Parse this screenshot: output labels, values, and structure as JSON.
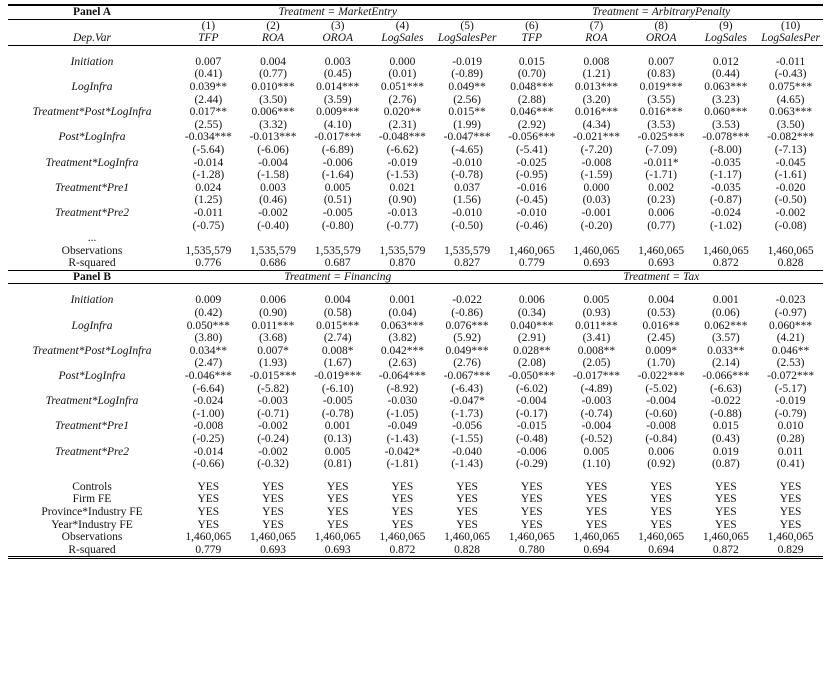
{
  "columns": [
    "(1)",
    "(2)",
    "(3)",
    "(4)",
    "(5)",
    "(6)",
    "(7)",
    "(8)",
    "(9)",
    "(10)"
  ],
  "dep_var_label": "Dep.Var",
  "dep_vars": [
    "TFP",
    "ROA",
    "OROA",
    "LogSales",
    "LogSalesPer",
    "TFP",
    "ROA",
    "OROA",
    "LogSales",
    "LogSalesPer"
  ],
  "panels": [
    {
      "label": "Panel A",
      "treatments": [
        "Treatment = MarketEntry",
        "Treatment = ArbitraryPenalty"
      ],
      "variables": [
        {
          "label": "Initiation",
          "coef": [
            "0.007",
            "0.004",
            "0.003",
            "0.000",
            "-0.019",
            "0.015",
            "0.008",
            "0.007",
            "0.012",
            "-0.011"
          ],
          "t": [
            "(0.41)",
            "(0.77)",
            "(0.45)",
            "(0.01)",
            "(-0.89)",
            "(0.70)",
            "(1.21)",
            "(0.83)",
            "(0.44)",
            "(-0.43)"
          ]
        },
        {
          "label": "LogInfra",
          "coef": [
            "0.039**",
            "0.010***",
            "0.014***",
            "0.051***",
            "0.049**",
            "0.048***",
            "0.013***",
            "0.019***",
            "0.063***",
            "0.075***"
          ],
          "t": [
            "(2.44)",
            "(3.50)",
            "(3.59)",
            "(2.76)",
            "(2.56)",
            "(2.88)",
            "(3.20)",
            "(3.55)",
            "(3.23)",
            "(4.65)"
          ]
        },
        {
          "label": "Treatment*Post*LogInfra",
          "coef": [
            "0.017**",
            "0.006***",
            "0.009***",
            "0.020**",
            "0.015**",
            "0.046***",
            "0.016***",
            "0.016***",
            "0.060***",
            "0.063***"
          ],
          "t": [
            "(2.55)",
            "(3.32)",
            "(4.10)",
            "(2.31)",
            "(1.99)",
            "(2.92)",
            "(4.34)",
            "(3.53)",
            "(3.53)",
            "(3.50)"
          ]
        },
        {
          "label": "Post*LogInfra",
          "coef": [
            "-0.034***",
            "-0.013***",
            "-0.017***",
            "-0.048***",
            "-0.047***",
            "-0.056***",
            "-0.021***",
            "-0.025***",
            "-0.078***",
            "-0.082***"
          ],
          "t": [
            "(-5.64)",
            "(-6.06)",
            "(-6.89)",
            "(-6.62)",
            "(-4.65)",
            "(-5.41)",
            "(-7.20)",
            "(-7.09)",
            "(-8.00)",
            "(-7.13)"
          ]
        },
        {
          "label": "Treatment*LogInfra",
          "coef": [
            "-0.014",
            "-0.004",
            "-0.006",
            "-0.019",
            "-0.010",
            "-0.025",
            "-0.008",
            "-0.011*",
            "-0.035",
            "-0.045"
          ],
          "t": [
            "(-1.28)",
            "(-1.58)",
            "(-1.64)",
            "(-1.53)",
            "(-0.78)",
            "(-0.95)",
            "(-1.59)",
            "(-1.71)",
            "(-1.17)",
            "(-1.61)"
          ]
        },
        {
          "label": "Treatment*Pre1",
          "coef": [
            "0.024",
            "0.003",
            "0.005",
            "0.021",
            "0.037",
            "-0.016",
            "0.000",
            "0.002",
            "-0.035",
            "-0.020"
          ],
          "t": [
            "(1.25)",
            "(0.46)",
            "(0.51)",
            "(0.90)",
            "(1.56)",
            "(-0.45)",
            "(0.03)",
            "(0.23)",
            "(-0.87)",
            "(-0.50)"
          ]
        },
        {
          "label": "Treatment*Pre2",
          "coef": [
            "-0.011",
            "-0.002",
            "-0.005",
            "-0.013",
            "-0.010",
            "-0.010",
            "-0.001",
            "0.006",
            "-0.024",
            "-0.002"
          ],
          "t": [
            "(-0.75)",
            "(-0.40)",
            "(-0.80)",
            "(-0.77)",
            "(-0.50)",
            "(-0.46)",
            "(-0.20)",
            "(0.77)",
            "(-1.02)",
            "(-0.08)"
          ]
        }
      ],
      "ellipsis": "...",
      "stats": [
        {
          "label": "Observations",
          "cells": [
            "1,535,579",
            "1,535,579",
            "1,535,579",
            "1,535,579",
            "1,535,579",
            "1,460,065",
            "1,460,065",
            "1,460,065",
            "1,460,065",
            "1,460,065"
          ]
        },
        {
          "label": "R-squared",
          "cells": [
            "0.776",
            "0.686",
            "0.687",
            "0.870",
            "0.827",
            "0.779",
            "0.693",
            "0.693",
            "0.872",
            "0.828"
          ]
        }
      ]
    },
    {
      "label": "Panel B",
      "treatments": [
        "Treatment = Financing",
        "Treatment = Tax"
      ],
      "variables": [
        {
          "label": "Initiation",
          "coef": [
            "0.009",
            "0.006",
            "0.004",
            "0.001",
            "-0.022",
            "0.006",
            "0.005",
            "0.004",
            "0.001",
            "-0.023"
          ],
          "t": [
            "(0.42)",
            "(0.90)",
            "(0.58)",
            "(0.04)",
            "(-0.86)",
            "(0.34)",
            "(0.93)",
            "(0.53)",
            "(0.06)",
            "(-0.97)"
          ]
        },
        {
          "label": "LogInfra",
          "coef": [
            "0.050***",
            "0.011***",
            "0.015***",
            "0.063***",
            "0.076***",
            "0.040***",
            "0.011***",
            "0.016**",
            "0.062***",
            "0.060***"
          ],
          "t": [
            "(3.80)",
            "(3.68)",
            "(2.74)",
            "(3.82)",
            "(5.92)",
            "(2.91)",
            "(3.41)",
            "(2.45)",
            "(3.57)",
            "(4.21)"
          ]
        },
        {
          "label": "Treatment*Post*LogInfra",
          "coef": [
            "0.034**",
            "0.007*",
            "0.008*",
            "0.042***",
            "0.049***",
            "0.028**",
            "0.008**",
            "0.009*",
            "0.033**",
            "0.046**"
          ],
          "t": [
            "(2.47)",
            "(1.93)",
            "(1.67)",
            "(2.63)",
            "(2.76)",
            "(2.08)",
            "(2.05)",
            "(1.70)",
            "(2.14)",
            "(2.53)"
          ]
        },
        {
          "label": "Post*LogInfra",
          "coef": [
            "-0.046***",
            "-0.015***",
            "-0.019***",
            "-0.064***",
            "-0.067***",
            "-0.050***",
            "-0.017***",
            "-0.022***",
            "-0.066***",
            "-0.072***"
          ],
          "t": [
            "(-6.64)",
            "(-5.82)",
            "(-6.10)",
            "(-8.92)",
            "(-6.43)",
            "(-6.02)",
            "(-4.89)",
            "(-5.02)",
            "(-6.63)",
            "(-5.17)"
          ]
        },
        {
          "label": "Treatment*LogInfra",
          "coef": [
            "-0.024",
            "-0.003",
            "-0.005",
            "-0.030",
            "-0.047*",
            "-0.004",
            "-0.003",
            "-0.004",
            "-0.022",
            "-0.019"
          ],
          "t": [
            "(-1.00)",
            "(-0.71)",
            "(-0.78)",
            "(-1.05)",
            "(-1.73)",
            "(-0.17)",
            "(-0.74)",
            "(-0.60)",
            "(-0.88)",
            "(-0.79)"
          ]
        },
        {
          "label": "Treatment*Pre1",
          "coef": [
            "-0.008",
            "-0.002",
            "0.001",
            "-0.049",
            "-0.056",
            "-0.015",
            "-0.004",
            "-0.008",
            "0.015",
            "0.010"
          ],
          "t": [
            "(-0.25)",
            "(-0.24)",
            "(0.13)",
            "(-1.43)",
            "(-1.55)",
            "(-0.48)",
            "(-0.52)",
            "(-0.84)",
            "(0.43)",
            "(0.28)"
          ]
        },
        {
          "label": "Treatment*Pre2",
          "coef": [
            "-0.014",
            "-0.002",
            "0.005",
            "-0.042*",
            "-0.040",
            "-0.006",
            "0.005",
            "0.006",
            "0.019",
            "0.011"
          ],
          "t": [
            "(-0.66)",
            "(-0.32)",
            "(0.81)",
            "(-1.81)",
            "(-1.43)",
            "(-0.29)",
            "(1.10)",
            "(0.92)",
            "(0.87)",
            "(0.41)"
          ]
        }
      ],
      "stats": [
        {
          "label": "Controls",
          "cells": [
            "YES",
            "YES",
            "YES",
            "YES",
            "YES",
            "YES",
            "YES",
            "YES",
            "YES",
            "YES"
          ]
        },
        {
          "label": "Firm FE",
          "cells": [
            "YES",
            "YES",
            "YES",
            "YES",
            "YES",
            "YES",
            "YES",
            "YES",
            "YES",
            "YES"
          ]
        },
        {
          "label": "Province*Industry FE",
          "cells": [
            "YES",
            "YES",
            "YES",
            "YES",
            "YES",
            "YES",
            "YES",
            "YES",
            "YES",
            "YES"
          ]
        },
        {
          "label": "Year*Industry FE",
          "cells": [
            "YES",
            "YES",
            "YES",
            "YES",
            "YES",
            "YES",
            "YES",
            "YES",
            "YES",
            "YES"
          ]
        },
        {
          "label": "Observations",
          "cells": [
            "1,460,065",
            "1,460,065",
            "1,460,065",
            "1,460,065",
            "1,460,065",
            "1,460,065",
            "1,460,065",
            "1,460,065",
            "1,460,065",
            "1,460,065"
          ]
        },
        {
          "label": "R-squared",
          "cells": [
            "0.779",
            "0.693",
            "0.693",
            "0.872",
            "0.828",
            "0.780",
            "0.694",
            "0.694",
            "0.872",
            "0.829"
          ]
        }
      ]
    }
  ]
}
